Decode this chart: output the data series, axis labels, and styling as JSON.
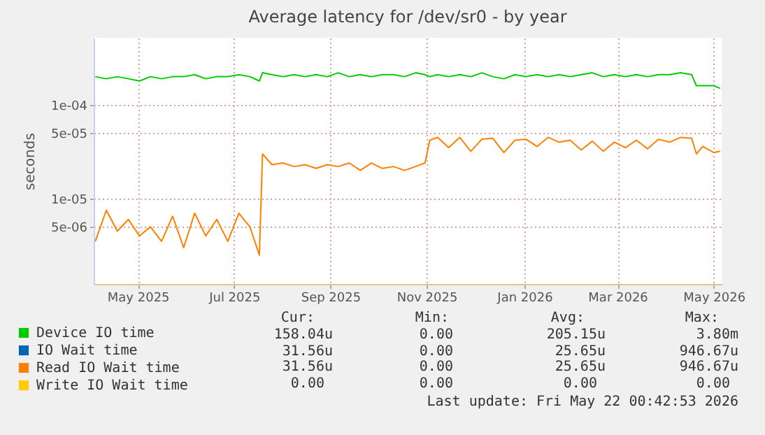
{
  "chart_data": {
    "type": "line",
    "title": "Average latency for /dev/sr0 - by year",
    "ylabel": "seconds",
    "log": true,
    "x": [
      "2025-04-19",
      "2025-04-26",
      "2025-05-03",
      "2025-05-10",
      "2025-05-17",
      "2025-05-24",
      "2025-05-31",
      "2025-06-07",
      "2025-06-14",
      "2025-06-21",
      "2025-06-28",
      "2025-07-05",
      "2025-07-12",
      "2025-07-19",
      "2025-07-26",
      "2025-08-01",
      "2025-08-03",
      "2025-08-09",
      "2025-08-16",
      "2025-08-23",
      "2025-08-30",
      "2025-09-06",
      "2025-09-13",
      "2025-09-20",
      "2025-09-27",
      "2025-10-04",
      "2025-10-11",
      "2025-10-18",
      "2025-10-25",
      "2025-11-01",
      "2025-11-08",
      "2025-11-14",
      "2025-11-17",
      "2025-11-22",
      "2025-11-29",
      "2025-12-06",
      "2025-12-13",
      "2025-12-20",
      "2025-12-27",
      "2026-01-03",
      "2026-01-10",
      "2026-01-17",
      "2026-01-24",
      "2026-01-31",
      "2026-02-07",
      "2026-02-14",
      "2026-02-21",
      "2026-02-28",
      "2026-03-07",
      "2026-03-14",
      "2026-03-21",
      "2026-03-28",
      "2026-04-04",
      "2026-04-11",
      "2026-04-18",
      "2026-04-25",
      "2026-05-02",
      "2026-05-05",
      "2026-05-09",
      "2026-05-16",
      "2026-05-20"
    ],
    "series": [
      {
        "name": "Device IO time",
        "color": "#00cc00",
        "values": [
          0.0002,
          0.00019,
          0.0002,
          0.00019,
          0.00018,
          0.0002,
          0.00019,
          0.0002,
          0.0002,
          0.00021,
          0.00019,
          0.0002,
          0.0002,
          0.00021,
          0.0002,
          0.00018,
          0.00022,
          0.00021,
          0.0002,
          0.00021,
          0.0002,
          0.00021,
          0.0002,
          0.00022,
          0.0002,
          0.00021,
          0.0002,
          0.00021,
          0.00021,
          0.0002,
          0.00022,
          0.00021,
          0.0002,
          0.00021,
          0.0002,
          0.00021,
          0.0002,
          0.00022,
          0.0002,
          0.00019,
          0.00021,
          0.0002,
          0.00021,
          0.0002,
          0.00021,
          0.0002,
          0.00021,
          0.00022,
          0.0002,
          0.00021,
          0.0002,
          0.00021,
          0.0002,
          0.00021,
          0.00021,
          0.00022,
          0.00021,
          0.00016,
          0.00016,
          0.00016,
          0.00015
        ]
      },
      {
        "name": "IO Wait time",
        "color": "#0066b3",
        "values": [
          null,
          null,
          null,
          null,
          null,
          null,
          null,
          null,
          null,
          null,
          null,
          null,
          null,
          null,
          null,
          null,
          null,
          null,
          null,
          null,
          null,
          null,
          null,
          null,
          null,
          null,
          null,
          null,
          null,
          null,
          null,
          null,
          null,
          null,
          null,
          null,
          null,
          null,
          null,
          null,
          null,
          null,
          null,
          null,
          null,
          null,
          null,
          null,
          null,
          null,
          null,
          null,
          null,
          null,
          null,
          null,
          null,
          null,
          null,
          null,
          null
        ]
      },
      {
        "name": "Read IO Wait time",
        "color": "#ff8000",
        "values": [
          3.5e-06,
          7.5e-06,
          4.5e-06,
          6e-06,
          4e-06,
          5e-06,
          3.5e-06,
          6.5e-06,
          3e-06,
          7e-06,
          4e-06,
          6e-06,
          3.5e-06,
          7e-06,
          5e-06,
          2.5e-06,
          3e-05,
          2.3e-05,
          2.4e-05,
          2.2e-05,
          2.3e-05,
          2.1e-05,
          2.3e-05,
          2.2e-05,
          2.4e-05,
          2e-05,
          2.4e-05,
          2.1e-05,
          2.2e-05,
          2e-05,
          2.2e-05,
          2.4e-05,
          4.2e-05,
          4.5e-05,
          3.5e-05,
          4.5e-05,
          3.2e-05,
          4.3e-05,
          4.4e-05,
          3.1e-05,
          4.2e-05,
          4.3e-05,
          3.6e-05,
          4.5e-05,
          4e-05,
          4.2e-05,
          3.3e-05,
          4.1e-05,
          3.2e-05,
          4e-05,
          3.5e-05,
          4.2e-05,
          3.4e-05,
          4.3e-05,
          4e-05,
          4.5e-05,
          4.4e-05,
          3e-05,
          3.6e-05,
          3.1e-05,
          3.2e-05
        ]
      },
      {
        "name": "Write IO Wait time",
        "color": "#ffcc00",
        "values": [
          null,
          null,
          null,
          null,
          null,
          null,
          null,
          null,
          null,
          null,
          null,
          null,
          null,
          null,
          null,
          null,
          null,
          null,
          null,
          null,
          null,
          null,
          null,
          null,
          null,
          null,
          null,
          null,
          null,
          null,
          null,
          null,
          null,
          null,
          null,
          null,
          null,
          null,
          null,
          null,
          null,
          null,
          null,
          null,
          null,
          null,
          null,
          null,
          null,
          null,
          null,
          null,
          null,
          null,
          null,
          null,
          null,
          null,
          null,
          null,
          null
        ]
      }
    ],
    "xlim": [
      "2025-04-18",
      "2026-05-21"
    ],
    "xticks": [
      {
        "value": "2025-05-16",
        "label": "May 2025"
      },
      {
        "value": "2025-07-16",
        "label": "Jul 2025"
      },
      {
        "value": "2025-09-15",
        "label": "Sep 2025"
      },
      {
        "value": "2025-11-15",
        "label": "Nov 2025"
      },
      {
        "value": "2026-01-16",
        "label": "Jan 2026"
      },
      {
        "value": "2026-03-16",
        "label": "Mar 2026"
      },
      {
        "value": "2026-05-16",
        "label": "May 2026"
      }
    ],
    "ylim": [
      1.23e-06,
      0.00052
    ],
    "yticks": [
      {
        "value": 5e-06,
        "label": "5e-06"
      },
      {
        "value": 1e-05,
        "label": "1e-05"
      },
      {
        "value": 5e-05,
        "label": "5e-05"
      },
      {
        "value": 0.0001,
        "label": "1e-04"
      }
    ],
    "grid": true,
    "legend": "bottom",
    "annotations": [
      "Cur:",
      "Min:",
      "Avg:",
      "Max:",
      "158.04u",
      "0.00",
      "205.15u",
      "3.80m",
      "31.56u",
      "0.00",
      "25.65u",
      "946.67u",
      "31.56u",
      "0.00",
      "25.65u",
      "946.67u",
      "0.00",
      "0.00",
      "0.00",
      "0.00",
      "Last update: Fri May 22 00:42:53 2026"
    ]
  }
}
